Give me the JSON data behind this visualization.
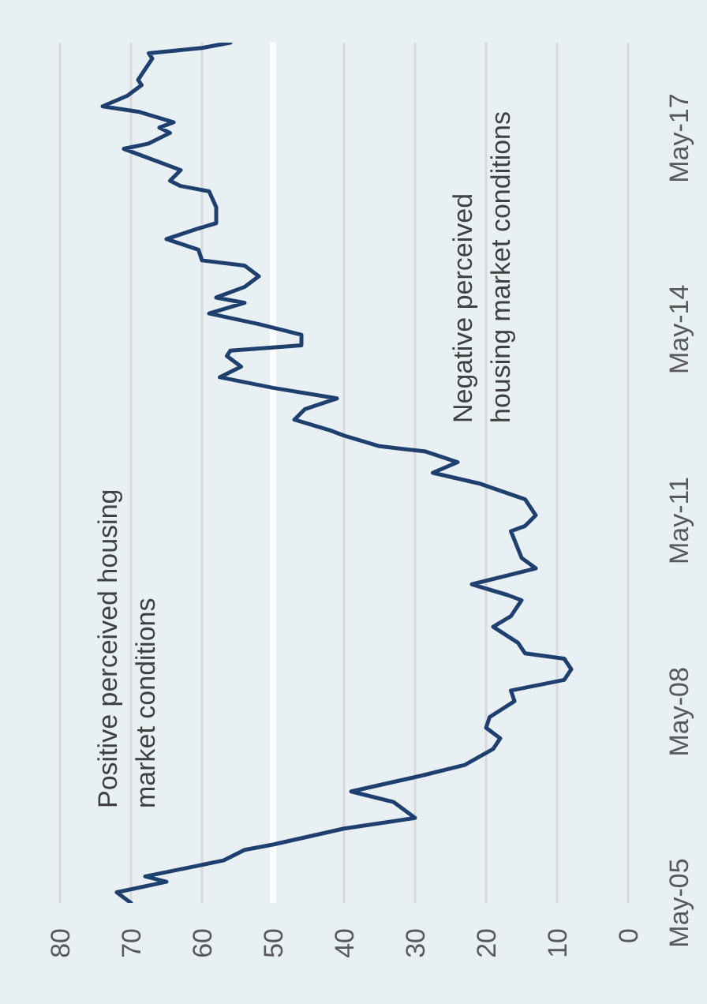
{
  "chart_data": {
    "type": "line",
    "orientation": "horizontal",
    "x": [
      "2005-05",
      "2005-07",
      "2005-09",
      "2005-10",
      "2006-01",
      "2006-03",
      "2006-04",
      "2006-07",
      "2006-09",
      "2006-12",
      "2007-02",
      "2007-05",
      "2007-07",
      "2007-10",
      "2007-12",
      "2008-02",
      "2008-04",
      "2008-07",
      "2008-09",
      "2008-11",
      "2009-01",
      "2009-03",
      "2009-04",
      "2009-06",
      "2009-09",
      "2009-11",
      "2010-02",
      "2010-03",
      "2010-05",
      "2010-08",
      "2010-10",
      "2011-03",
      "2011-04",
      "2011-06",
      "2011-09",
      "2011-12",
      "2012-02",
      "2012-04",
      "2012-06",
      "2012-07",
      "2012-09",
      "2012-10",
      "2012-12",
      "2013-02",
      "2013-04",
      "2013-06",
      "2013-08",
      "2013-10",
      "2013-12",
      "2014-01",
      "2014-02",
      "2014-04",
      "2014-06",
      "2014-08",
      "2014-10",
      "2014-11",
      "2015-01",
      "2015-03",
      "2015-05",
      "2015-06",
      "2015-08",
      "2015-10",
      "2015-12",
      "2016-01",
      "2016-04",
      "2016-07",
      "2016-08",
      "2016-09",
      "2016-11",
      "2017-02",
      "2017-03",
      "2017-04",
      "2017-06",
      "2017-07",
      "2017-08",
      "2017-10",
      "2017-11",
      "2018-01",
      "2018-03",
      "2018-04",
      "2018-06",
      "2018-08",
      "2018-09",
      "2018-10",
      "2018-11"
    ],
    "series": [
      {
        "color": "#1f3f6e",
        "values": [
          70,
          72,
          65,
          68,
          57,
          54,
          50,
          40,
          30,
          33,
          39,
          29,
          23,
          19,
          18,
          20,
          19.5,
          16,
          16.5,
          9,
          8,
          9,
          14.5,
          15.5,
          19,
          16.5,
          15,
          17,
          22,
          13,
          15,
          16.5,
          14.5,
          13,
          14.5,
          21,
          27.5,
          24,
          28.5,
          35,
          40,
          42,
          47,
          45.5,
          41,
          50,
          57.5,
          54.5,
          56.5,
          56,
          46,
          46,
          52,
          59,
          54,
          58,
          54,
          52,
          54,
          60,
          60.5,
          65,
          60.5,
          58,
          58,
          59,
          63,
          64.5,
          63,
          69,
          71,
          67.5,
          64.5,
          66,
          64,
          69,
          74,
          70.5,
          68.5,
          69,
          68,
          67,
          67.5,
          60,
          56
        ]
      }
    ],
    "ylim": [
      "2005-05",
      "2018-11"
    ],
    "yticks": [
      {
        "value": "2005-05",
        "label": "May-05"
      },
      {
        "value": "2008-05",
        "label": "May-08"
      },
      {
        "value": "2011-05",
        "label": "May-11"
      },
      {
        "value": "2014-05",
        "label": "May-14"
      },
      {
        "value": "2017-05",
        "label": "May-17"
      }
    ],
    "xlim": [
      80,
      0
    ],
    "xticks": [
      0,
      10,
      20,
      30,
      40,
      50,
      60,
      70,
      80
    ],
    "grid": "x",
    "marker": "none",
    "line_style": "solid",
    "ref_lines": [
      {
        "axis": "x",
        "value": 50,
        "color": "#ffffff"
      }
    ],
    "annotations": [
      "Positive perceived housing market conditions",
      "Negative perceived housing market conditions"
    ]
  }
}
